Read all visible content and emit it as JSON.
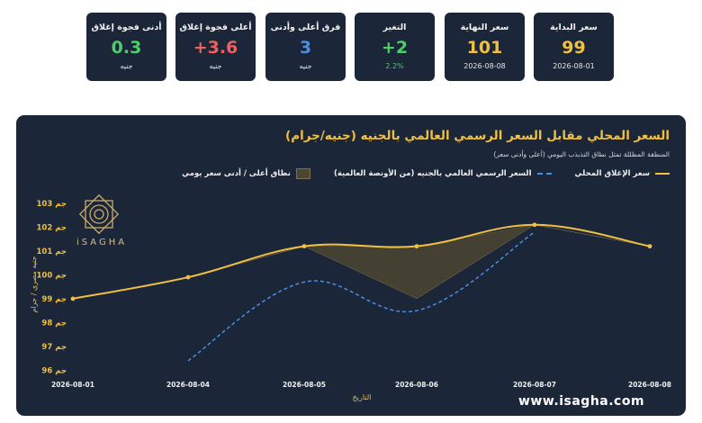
{
  "stats": [
    {
      "title": "سعر البداية",
      "value": "99",
      "sub": "2026-08-01",
      "color": "#f0c040",
      "subColor": "#e6e6e6"
    },
    {
      "title": "سعر النهاية",
      "value": "101",
      "sub": "2026-08-08",
      "color": "#f0c040",
      "subColor": "#e6e6e6"
    },
    {
      "title": "التغير",
      "value": "+2",
      "sub": "2.2%",
      "color": "#4ccf6a",
      "subColor": "#4ccf6a"
    },
    {
      "title": "فرق أعلى وأدنى",
      "value": "3",
      "sub": "جنيه",
      "color": "#4a8fe0",
      "subColor": "#e6e6e6"
    },
    {
      "title": "أعلى فجوة إغلاق",
      "value": "+3.6",
      "sub": "جنيه",
      "color": "#f06060",
      "subColor": "#e6e6e6"
    },
    {
      "title": "أدنى فجوة إغلاق",
      "value": "0.3",
      "sub": "جنيه",
      "color": "#4ccf6a",
      "subColor": "#e6e6e6"
    }
  ],
  "brand": "www.isagha.com",
  "logo_text": "iSAGHA",
  "colors": {
    "local": "#f0c040",
    "global": "#4a8fe0",
    "band": "#4b4531"
  },
  "chart_data": {
    "type": "line",
    "title": "السعر المحلي مقابل السعر الرسمي العالمي بالجنيه (جنيه/جرام)",
    "subtitle": "المنطقة المظللة تمثل نطاق التذبذب اليومي (أعلى وأدنى سعر)",
    "xlabel": "التاريخ",
    "ylabel": "جنيه مصري / جرام",
    "x": [
      "2026-08-01",
      "2026-08-04",
      "2026-08-05",
      "2026-08-06",
      "2026-08-07",
      "2026-08-08"
    ],
    "y_ticks": [
      96,
      97,
      98,
      99,
      100,
      101,
      102,
      103
    ],
    "y_tick_suffix": " جم",
    "ylim": [
      95.9,
      103.3
    ],
    "grid": false,
    "legend_position": "top-right",
    "series": [
      {
        "name": "سعر الإغلاق المحلي",
        "style": "solid",
        "values": [
          99,
          99.9,
          101.2,
          101.2,
          102.1,
          101.2
        ]
      },
      {
        "name": "السعر الرسمي العالمي بالجنيه (من الأونصة العالمية)",
        "style": "dashed",
        "values": [
          null,
          96.4,
          99.7,
          98.5,
          101.8,
          null
        ]
      }
    ],
    "band": {
      "name": "نطاق أعلى / أدنى سعر يومي",
      "upper": [
        99,
        99.9,
        101.2,
        101.2,
        102.1,
        101.2
      ],
      "lower": [
        99,
        99.9,
        101.2,
        99.0,
        102.1,
        101.2
      ]
    }
  }
}
